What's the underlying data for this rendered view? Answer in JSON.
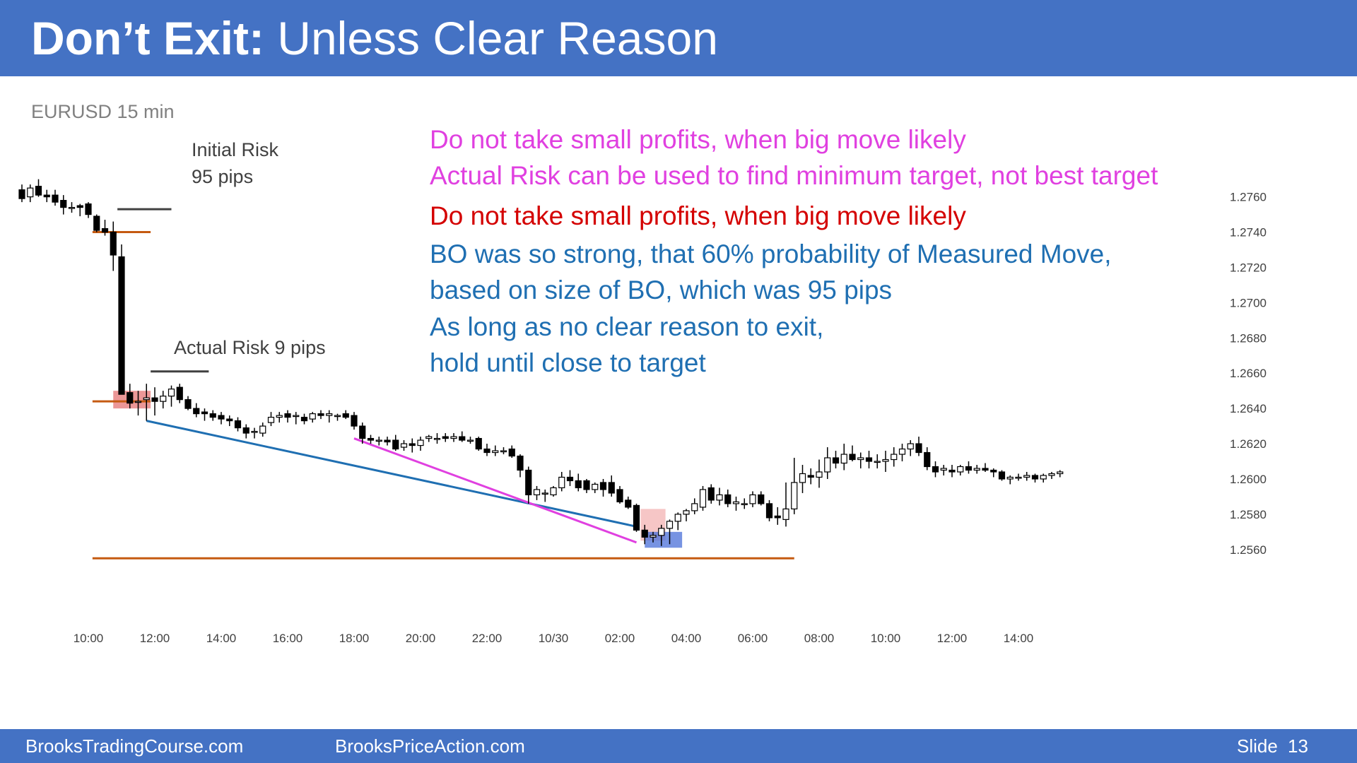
{
  "slide": {
    "title_bold": "Don’t Exit:",
    "title_rest": " Unless Clear Reason",
    "footer_left": "BrooksTradingCourse.com",
    "footer_mid": "BrooksPriceAction.com",
    "slide_label": "Slide",
    "slide_number": "13",
    "colors": {
      "header": "#4472c4",
      "magenta": "#e040e0",
      "red": "#d40000",
      "blue": "#1f6fb2",
      "orange": "#c55a11"
    }
  },
  "annotations": {
    "instrument": "EURUSD 15 min",
    "initial_risk_1": "Initial Risk",
    "initial_risk_2": "95 pips",
    "actual_risk": "Actual Risk 9 pips",
    "lines": [
      "Do not take small profits, when big move likely",
      "Actual Risk can be used to find minimum target, not best target",
      "Do not take small profits, when big move likely",
      "BO was so strong, that 60% probability of Measured Move,",
      "based on size of BO, which was 95 pips",
      "As long as no clear reason to exit,",
      "hold until close to target"
    ]
  },
  "chart_data": {
    "type": "candlestick",
    "instrument": "EURUSD",
    "timeframe": "15 min",
    "y_ticks": [
      1.276,
      1.274,
      1.272,
      1.27,
      1.268,
      1.266,
      1.264,
      1.262,
      1.26,
      1.258,
      1.256
    ],
    "y_tick_labels": [
      "1.2760",
      "1.2740",
      "1.2720",
      "1.2700",
      "1.2680",
      "1.2660",
      "1.2640",
      "1.2620",
      "1.2600",
      "1.2580",
      "1.2560"
    ],
    "ylim": [
      1.25475,
      1.27895
    ],
    "x_tick_labels": [
      "10:00",
      "12:00",
      "14:00",
      "16:00",
      "18:00",
      "20:00",
      "22:00",
      "10/30",
      "02:00",
      "04:00",
      "06:00",
      "08:00",
      "10:00",
      "12:00",
      "14:00"
    ],
    "x_tick_bar_index": [
      8,
      16,
      24,
      32,
      40,
      48,
      56,
      64,
      72,
      80,
      88,
      96,
      104,
      112,
      120
    ],
    "bars": [
      [
        1.2764,
        1.2767,
        1.2757,
        1.2759
      ],
      [
        1.276,
        1.2767,
        1.2757,
        1.2765
      ],
      [
        1.2766,
        1.277,
        1.276,
        1.2761
      ],
      [
        1.2761,
        1.2764,
        1.2757,
        1.276
      ],
      [
        1.2761,
        1.2764,
        1.2755,
        1.2757
      ],
      [
        1.2758,
        1.2761,
        1.275,
        1.2754
      ],
      [
        1.2754,
        1.2757,
        1.2751,
        1.2754
      ],
      [
        1.2755,
        1.2756,
        1.2749,
        1.2754
      ],
      [
        1.2756,
        1.2757,
        1.2748,
        1.275
      ],
      [
        1.2749,
        1.275,
        1.274,
        1.2741
      ],
      [
        1.2742,
        1.2747,
        1.2738,
        1.274
      ],
      [
        1.274,
        1.2746,
        1.2718,
        1.2727
      ],
      [
        1.2726,
        1.2733,
        1.2648,
        1.2648
      ],
      [
        1.2649,
        1.2654,
        1.264,
        1.2643
      ],
      [
        1.2644,
        1.265,
        1.2636,
        1.2644
      ],
      [
        1.2645,
        1.2654,
        1.2633,
        1.2646
      ],
      [
        1.2646,
        1.2652,
        1.2636,
        1.2644
      ],
      [
        1.2644,
        1.265,
        1.264,
        1.2647
      ],
      [
        1.2647,
        1.2653,
        1.2641,
        1.2651
      ],
      [
        1.2652,
        1.2654,
        1.2643,
        1.2645
      ],
      [
        1.2645,
        1.2647,
        1.2639,
        1.264
      ],
      [
        1.264,
        1.2643,
        1.2635,
        1.2637
      ],
      [
        1.2638,
        1.264,
        1.2633,
        1.2637
      ],
      [
        1.2637,
        1.2639,
        1.2633,
        1.2635
      ],
      [
        1.2636,
        1.2638,
        1.2631,
        1.2634
      ],
      [
        1.2634,
        1.2636,
        1.263,
        1.2633
      ],
      [
        1.2633,
        1.2635,
        1.2627,
        1.2629
      ],
      [
        1.2629,
        1.2631,
        1.2623,
        1.2626
      ],
      [
        1.2627,
        1.2629,
        1.2623,
        1.2627
      ],
      [
        1.2626,
        1.2632,
        1.2624,
        1.263
      ],
      [
        1.2632,
        1.2638,
        1.263,
        1.2635
      ],
      [
        1.2635,
        1.2638,
        1.2632,
        1.2636
      ],
      [
        1.2637,
        1.2639,
        1.2632,
        1.2635
      ],
      [
        1.2636,
        1.2638,
        1.2631,
        1.2636
      ],
      [
        1.2635,
        1.2637,
        1.2631,
        1.2633
      ],
      [
        1.2634,
        1.2638,
        1.2632,
        1.2637
      ],
      [
        1.2637,
        1.2639,
        1.2634,
        1.2636
      ],
      [
        1.2636,
        1.2639,
        1.2632,
        1.2637
      ],
      [
        1.2636,
        1.2637,
        1.2633,
        1.2636
      ],
      [
        1.2637,
        1.2639,
        1.2634,
        1.2635
      ],
      [
        1.2636,
        1.2638,
        1.2628,
        1.263
      ],
      [
        1.263,
        1.2632,
        1.262,
        1.2623
      ],
      [
        1.2623,
        1.2625,
        1.262,
        1.2622
      ],
      [
        1.2622,
        1.2624,
        1.2619,
        1.2622
      ],
      [
        1.2622,
        1.2624,
        1.2619,
        1.2621
      ],
      [
        1.2622,
        1.2625,
        1.2616,
        1.2617
      ],
      [
        1.2618,
        1.2622,
        1.2616,
        1.262
      ],
      [
        1.262,
        1.2623,
        1.2615,
        1.2619
      ],
      [
        1.2619,
        1.2624,
        1.2616,
        1.2622
      ],
      [
        1.2623,
        1.2625,
        1.2621,
        1.2624
      ],
      [
        1.2623,
        1.2626,
        1.262,
        1.2623
      ],
      [
        1.2624,
        1.2626,
        1.2621,
        1.2623
      ],
      [
        1.2623,
        1.2626,
        1.2621,
        1.2624
      ],
      [
        1.2624,
        1.2627,
        1.2621,
        1.2622
      ],
      [
        1.2622,
        1.2624,
        1.262,
        1.2622
      ],
      [
        1.2623,
        1.2624,
        1.2616,
        1.2617
      ],
      [
        1.2617,
        1.262,
        1.2613,
        1.2615
      ],
      [
        1.2615,
        1.2619,
        1.2613,
        1.2616
      ],
      [
        1.2616,
        1.2618,
        1.2614,
        1.2616
      ],
      [
        1.2617,
        1.2619,
        1.2612,
        1.2613
      ],
      [
        1.2613,
        1.2614,
        1.2601,
        1.2605
      ],
      [
        1.2605,
        1.2607,
        1.2586,
        1.2591
      ],
      [
        1.2591,
        1.2596,
        1.2588,
        1.2594
      ],
      [
        1.2592,
        1.2594,
        1.2587,
        1.2592
      ],
      [
        1.2591,
        1.2596,
        1.259,
        1.2595
      ],
      [
        1.2595,
        1.2604,
        1.2593,
        1.2601
      ],
      [
        1.2601,
        1.2605,
        1.2596,
        1.2599
      ],
      [
        1.2599,
        1.2603,
        1.2593,
        1.2595
      ],
      [
        1.2599,
        1.26,
        1.2592,
        1.2594
      ],
      [
        1.2594,
        1.2598,
        1.2592,
        1.2597
      ],
      [
        1.2598,
        1.26,
        1.259,
        1.2594
      ],
      [
        1.2598,
        1.2602,
        1.259,
        1.2592
      ],
      [
        1.2594,
        1.2596,
        1.2586,
        1.2587
      ],
      [
        1.2588,
        1.259,
        1.2583,
        1.2584
      ],
      [
        1.2585,
        1.2586,
        1.257,
        1.2571
      ],
      [
        1.2571,
        1.2574,
        1.2563,
        1.2567
      ],
      [
        1.2567,
        1.257,
        1.2564,
        1.2568
      ],
      [
        1.2568,
        1.2574,
        1.2562,
        1.2572
      ],
      [
        1.2572,
        1.2577,
        1.2563,
        1.2576
      ],
      [
        1.2576,
        1.2581,
        1.2571,
        1.258
      ],
      [
        1.258,
        1.2583,
        1.2576,
        1.2582
      ],
      [
        1.2582,
        1.2589,
        1.258,
        1.2586
      ],
      [
        1.2584,
        1.2596,
        1.2582,
        1.2594
      ],
      [
        1.2595,
        1.2597,
        1.2586,
        1.2588
      ],
      [
        1.2588,
        1.2595,
        1.2585,
        1.2591
      ],
      [
        1.2591,
        1.2594,
        1.2584,
        1.2586
      ],
      [
        1.2586,
        1.259,
        1.2582,
        1.2587
      ],
      [
        1.2586,
        1.2589,
        1.2583,
        1.2586
      ],
      [
        1.2586,
        1.2593,
        1.2584,
        1.2591
      ],
      [
        1.2591,
        1.2593,
        1.2585,
        1.2586
      ],
      [
        1.2586,
        1.2588,
        1.2576,
        1.2578
      ],
      [
        1.2579,
        1.2584,
        1.2574,
        1.2578
      ],
      [
        1.2577,
        1.2598,
        1.2573,
        1.2583
      ],
      [
        1.2583,
        1.2612,
        1.258,
        1.2598
      ],
      [
        1.2598,
        1.2608,
        1.2592,
        1.2603
      ],
      [
        1.2602,
        1.2606,
        1.2597,
        1.2601
      ],
      [
        1.2601,
        1.2611,
        1.2595,
        1.2604
      ],
      [
        1.2604,
        1.2618,
        1.26,
        1.2612
      ],
      [
        1.2612,
        1.2616,
        1.2606,
        1.2609
      ],
      [
        1.2609,
        1.262,
        1.2605,
        1.2614
      ],
      [
        1.2614,
        1.2619,
        1.261,
        1.2611
      ],
      [
        1.2611,
        1.2615,
        1.2606,
        1.2612
      ],
      [
        1.2612,
        1.2616,
        1.2606,
        1.261
      ],
      [
        1.261,
        1.2614,
        1.2606,
        1.261
      ],
      [
        1.261,
        1.2616,
        1.2604,
        1.2611
      ],
      [
        1.2611,
        1.2618,
        1.2607,
        1.2614
      ],
      [
        1.2614,
        1.262,
        1.261,
        1.2617
      ],
      [
        1.2617,
        1.2622,
        1.2613,
        1.262
      ],
      [
        1.262,
        1.2624,
        1.2613,
        1.2615
      ],
      [
        1.2615,
        1.2618,
        1.2605,
        1.2607
      ],
      [
        1.2607,
        1.261,
        1.2601,
        1.2604
      ],
      [
        1.2605,
        1.2608,
        1.2602,
        1.2606
      ],
      [
        1.2605,
        1.2608,
        1.2601,
        1.2604
      ],
      [
        1.2604,
        1.2608,
        1.2602,
        1.2607
      ],
      [
        1.2607,
        1.261,
        1.2603,
        1.2605
      ],
      [
        1.2605,
        1.2608,
        1.2603,
        1.2606
      ],
      [
        1.2606,
        1.2609,
        1.2604,
        1.2605
      ],
      [
        1.2605,
        1.2606,
        1.2601,
        1.2604
      ],
      [
        1.2604,
        1.2605,
        1.2599,
        1.26
      ],
      [
        1.26,
        1.2602,
        1.2597,
        1.2601
      ],
      [
        1.2601,
        1.2603,
        1.2599,
        1.2601
      ],
      [
        1.2601,
        1.2604,
        1.2599,
        1.2602
      ],
      [
        1.2602,
        1.2603,
        1.2598,
        1.26
      ],
      [
        1.26,
        1.2603,
        1.2598,
        1.2602
      ],
      [
        1.2602,
        1.2604,
        1.26,
        1.2603
      ],
      [
        1.2603,
        1.2605,
        1.2601,
        1.2604
      ]
    ],
    "overlays": [
      {
        "type": "trendline",
        "color": "#1f6fb2",
        "from": [
          15,
          1.2633
        ],
        "to": [
          74,
          1.2573
        ]
      },
      {
        "type": "trendline",
        "color": "#e040e0",
        "from": [
          40,
          1.2623
        ],
        "to": [
          74,
          1.2564
        ]
      },
      {
        "type": "hline",
        "color": "#c55a11",
        "y": 1.2644,
        "from": 8.5,
        "to": 15.5
      },
      {
        "type": "hline",
        "color": "#c55a11",
        "y": 1.274,
        "from": 8.5,
        "to": 15.5
      },
      {
        "type": "hline",
        "color": "#c55a11",
        "y": 1.2555,
        "from": 8.5,
        "to": 93
      },
      {
        "type": "hline",
        "color": "#404040",
        "y": 1.2753,
        "from": 11.5,
        "to": 18
      },
      {
        "type": "hline",
        "color": "#404040",
        "y": 1.2661,
        "from": 15.5,
        "to": 22.5
      },
      {
        "type": "box",
        "color": "#e06060",
        "opacity": 0.65,
        "x": [
          11,
          15.5
        ],
        "y": [
          1.264,
          1.265
        ]
      },
      {
        "type": "box",
        "color": "#f0a0a0",
        "opacity": 0.6,
        "x": [
          74.5,
          77.5
        ],
        "y": [
          1.2565,
          1.2583
        ]
      },
      {
        "type": "box",
        "color": "#4a6fd8",
        "opacity": 0.75,
        "x": [
          75,
          79.5
        ],
        "y": [
          1.2561,
          1.257
        ]
      }
    ]
  }
}
